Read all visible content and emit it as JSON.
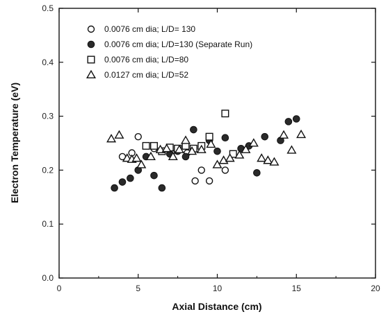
{
  "chart_data": {
    "type": "scatter",
    "title": "",
    "xlabel": "Axial Distance (cm)",
    "ylabel": "Electron Temperature (eV)",
    "xlim": [
      0,
      20
    ],
    "ylim": [
      0.0,
      0.5
    ],
    "x_ticks": [
      "0",
      "5",
      "10",
      "15",
      "20"
    ],
    "y_ticks": [
      "0.0",
      "0.1",
      "0.2",
      "0.3",
      "0.4",
      "0.5"
    ],
    "grid": false,
    "legend_position": "top-left",
    "series": [
      {
        "name": "0.0076 cm dia; L/D= 130",
        "marker": "open-circle",
        "points": [
          {
            "x": 4.0,
            "y": 0.225
          },
          {
            "x": 4.6,
            "y": 0.232
          },
          {
            "x": 5.0,
            "y": 0.262
          },
          {
            "x": 6.0,
            "y": 0.24
          },
          {
            "x": 7.1,
            "y": 0.232
          },
          {
            "x": 8.1,
            "y": 0.232
          },
          {
            "x": 8.6,
            "y": 0.18
          },
          {
            "x": 9.0,
            "y": 0.2
          },
          {
            "x": 9.5,
            "y": 0.18
          },
          {
            "x": 10.5,
            "y": 0.2
          }
        ]
      },
      {
        "name": "0.0076 cm dia; L/D=130 (Separate Run)",
        "marker": "filled-circle",
        "points": [
          {
            "x": 3.5,
            "y": 0.167
          },
          {
            "x": 4.0,
            "y": 0.178
          },
          {
            "x": 4.5,
            "y": 0.185
          },
          {
            "x": 5.0,
            "y": 0.2
          },
          {
            "x": 5.5,
            "y": 0.225
          },
          {
            "x": 6.0,
            "y": 0.19
          },
          {
            "x": 6.5,
            "y": 0.167
          },
          {
            "x": 7.0,
            "y": 0.23
          },
          {
            "x": 7.5,
            "y": 0.235
          },
          {
            "x": 8.0,
            "y": 0.225
          },
          {
            "x": 8.5,
            "y": 0.275
          },
          {
            "x": 9.0,
            "y": 0.243
          },
          {
            "x": 9.5,
            "y": 0.255
          },
          {
            "x": 10.0,
            "y": 0.235
          },
          {
            "x": 10.5,
            "y": 0.26
          },
          {
            "x": 11.5,
            "y": 0.24
          },
          {
            "x": 12.0,
            "y": 0.245
          },
          {
            "x": 12.5,
            "y": 0.195
          },
          {
            "x": 13.0,
            "y": 0.262
          },
          {
            "x": 14.0,
            "y": 0.255
          },
          {
            "x": 14.5,
            "y": 0.29
          },
          {
            "x": 15.0,
            "y": 0.295
          }
        ]
      },
      {
        "name": "0.0076 cm dia; L/D=80",
        "marker": "open-square",
        "points": [
          {
            "x": 5.5,
            "y": 0.245
          },
          {
            "x": 6.0,
            "y": 0.245
          },
          {
            "x": 6.5,
            "y": 0.235
          },
          {
            "x": 7.0,
            "y": 0.242
          },
          {
            "x": 7.5,
            "y": 0.24
          },
          {
            "x": 8.0,
            "y": 0.245
          },
          {
            "x": 8.5,
            "y": 0.24
          },
          {
            "x": 9.0,
            "y": 0.245
          },
          {
            "x": 9.5,
            "y": 0.262
          },
          {
            "x": 10.5,
            "y": 0.305
          },
          {
            "x": 11.0,
            "y": 0.23
          }
        ]
      },
      {
        "name": "0.0127 cm dia; L/D=52",
        "marker": "open-triangle",
        "points": [
          {
            "x": 3.3,
            "y": 0.258
          },
          {
            "x": 3.8,
            "y": 0.265
          },
          {
            "x": 4.3,
            "y": 0.222
          },
          {
            "x": 4.6,
            "y": 0.22
          },
          {
            "x": 4.9,
            "y": 0.222
          },
          {
            "x": 5.2,
            "y": 0.21
          },
          {
            "x": 5.8,
            "y": 0.225
          },
          {
            "x": 6.4,
            "y": 0.238
          },
          {
            "x": 6.8,
            "y": 0.24
          },
          {
            "x": 7.2,
            "y": 0.225
          },
          {
            "x": 7.6,
            "y": 0.238
          },
          {
            "x": 8.0,
            "y": 0.255
          },
          {
            "x": 8.4,
            "y": 0.235
          },
          {
            "x": 9.0,
            "y": 0.238
          },
          {
            "x": 9.6,
            "y": 0.248
          },
          {
            "x": 10.0,
            "y": 0.21
          },
          {
            "x": 10.4,
            "y": 0.218
          },
          {
            "x": 10.8,
            "y": 0.222
          },
          {
            "x": 11.4,
            "y": 0.228
          },
          {
            "x": 11.8,
            "y": 0.238
          },
          {
            "x": 12.3,
            "y": 0.25
          },
          {
            "x": 12.8,
            "y": 0.222
          },
          {
            "x": 13.2,
            "y": 0.218
          },
          {
            "x": 13.6,
            "y": 0.215
          },
          {
            "x": 14.2,
            "y": 0.265
          },
          {
            "x": 14.7,
            "y": 0.237
          },
          {
            "x": 15.3,
            "y": 0.266
          }
        ]
      }
    ]
  }
}
